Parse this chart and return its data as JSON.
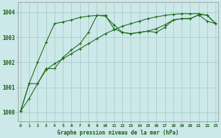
{
  "bg_color": "#cce8e8",
  "grid_color": "#aacccc",
  "line_color": "#1a6b1a",
  "marker_color": "#1a6b1a",
  "title": "Graphe pression niveau de la mer (hPa)",
  "title_color": "#1a5c1a",
  "xlim": [
    -0.3,
    23.3
  ],
  "ylim": [
    999.65,
    1004.4
  ],
  "yticks": [
    1000,
    1001,
    1002,
    1003,
    1004
  ],
  "xticks": [
    0,
    1,
    2,
    3,
    4,
    5,
    6,
    7,
    8,
    9,
    10,
    11,
    12,
    13,
    14,
    15,
    16,
    17,
    18,
    19,
    20,
    21,
    22,
    23
  ],
  "series": [
    [
      1000.05,
      1000.55,
      1001.15,
      1001.75,
      1001.75,
      1002.2,
      1002.5,
      1002.75,
      1003.2,
      1003.88,
      1003.88,
      1003.35,
      1003.2,
      1003.15,
      1003.2,
      1003.25,
      1003.2,
      1003.4,
      1003.7,
      1003.75,
      1003.75,
      1003.9,
      1003.65,
      1003.55
    ],
    [
      1000.05,
      1001.15,
      1001.15,
      1001.7,
      1001.95,
      1002.15,
      1002.35,
      1002.55,
      1002.75,
      1002.95,
      1003.15,
      1003.3,
      1003.45,
      1003.55,
      1003.65,
      1003.75,
      1003.82,
      1003.88,
      1003.92,
      1003.95,
      1003.95,
      1003.95,
      1003.88,
      1003.55
    ],
    [
      1000.05,
      1001.15,
      1002.0,
      1002.8,
      1003.55,
      1003.62,
      1003.7,
      1003.8,
      1003.85,
      1003.88,
      1003.85,
      1003.5,
      1003.2,
      1003.15,
      1003.2,
      1003.25,
      1003.35,
      1003.5,
      1003.7,
      1003.75,
      1003.75,
      1003.9,
      1003.9,
      1003.55
    ]
  ]
}
